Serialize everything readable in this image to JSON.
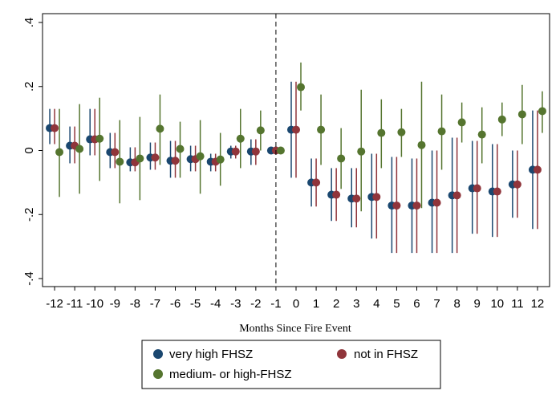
{
  "chart_data": {
    "type": "scatter",
    "title": "",
    "xlabel": "Months Since Fire Event",
    "ylabel": "",
    "x": [
      -12,
      -11,
      -10,
      -9,
      -8,
      -7,
      -6,
      -5,
      -4,
      -3,
      -2,
      -1,
      0,
      1,
      2,
      3,
      4,
      5,
      6,
      7,
      8,
      9,
      10,
      11,
      12
    ],
    "xtick_labels": [
      "-12",
      "-11",
      "-10",
      "-9",
      "-8",
      "-7",
      "-6",
      "-5",
      "-4",
      "-3",
      "-2",
      "-1",
      "0",
      "1",
      "2",
      "3",
      "4",
      "5",
      "6",
      "7",
      "8",
      "9",
      "10",
      "11",
      "12"
    ],
    "ylim": [
      -0.4,
      0.4
    ],
    "yticks": [
      -0.4,
      -0.2,
      0,
      0.2,
      0.4
    ],
    "ytick_labels": [
      "-.4",
      "-.2",
      "0",
      ".2",
      ".4"
    ],
    "reference_line_x": -1,
    "reference_line_style": "dashed",
    "grid": false,
    "legend_position": "bottom",
    "series": [
      {
        "name": "very high FHSZ",
        "color": "#1a476f",
        "values": [
          0.07,
          0.015,
          0.035,
          -0.005,
          -0.037,
          -0.022,
          -0.032,
          -0.027,
          -0.035,
          -0.003,
          -0.003,
          0.0,
          0.065,
          -0.1,
          -0.138,
          -0.15,
          -0.145,
          -0.172,
          -0.172,
          -0.163,
          -0.14,
          -0.118,
          -0.128,
          -0.106,
          -0.06
        ],
        "lower": [
          0.02,
          -0.04,
          -0.015,
          -0.055,
          -0.065,
          -0.06,
          -0.085,
          -0.065,
          -0.065,
          -0.025,
          -0.045,
          0.0,
          -0.085,
          -0.175,
          -0.22,
          -0.24,
          -0.275,
          -0.32,
          -0.32,
          -0.32,
          -0.32,
          -0.26,
          -0.27,
          -0.21,
          -0.245
        ],
        "upper": [
          0.13,
          0.075,
          0.13,
          0.055,
          0.01,
          0.025,
          0.03,
          0.015,
          -0.01,
          0.015,
          0.035,
          0.0,
          0.215,
          -0.025,
          -0.055,
          -0.055,
          -0.01,
          -0.02,
          -0.025,
          0.0,
          0.04,
          0.03,
          0.02,
          0.0,
          0.125
        ]
      },
      {
        "name": "not in FHSZ",
        "color": "#90353b",
        "values": [
          0.07,
          0.015,
          0.035,
          -0.005,
          -0.037,
          -0.022,
          -0.032,
          -0.027,
          -0.035,
          -0.003,
          -0.003,
          0.0,
          0.065,
          -0.1,
          -0.138,
          -0.15,
          -0.145,
          -0.172,
          -0.172,
          -0.163,
          -0.14,
          -0.118,
          -0.128,
          -0.106,
          -0.06
        ],
        "lower": [
          0.02,
          -0.04,
          -0.015,
          -0.055,
          -0.065,
          -0.06,
          -0.085,
          -0.065,
          -0.065,
          -0.025,
          -0.045,
          0.0,
          -0.085,
          -0.175,
          -0.22,
          -0.24,
          -0.275,
          -0.32,
          -0.32,
          -0.32,
          -0.32,
          -0.26,
          -0.27,
          -0.21,
          -0.245
        ],
        "upper": [
          0.13,
          0.075,
          0.13,
          0.055,
          0.01,
          0.025,
          0.03,
          0.015,
          -0.01,
          0.015,
          0.035,
          0.0,
          0.215,
          -0.025,
          -0.055,
          -0.055,
          -0.01,
          -0.02,
          -0.025,
          0.0,
          0.04,
          0.03,
          0.02,
          0.0,
          0.125
        ]
      },
      {
        "name": "medium- or high-FHSZ",
        "color": "#55752f",
        "values": [
          -0.005,
          0.005,
          0.037,
          -0.035,
          -0.025,
          0.068,
          0.005,
          -0.018,
          -0.028,
          0.037,
          0.063,
          0.0,
          0.198,
          0.065,
          -0.025,
          -0.003,
          0.055,
          0.057,
          0.017,
          0.06,
          0.088,
          0.05,
          0.097,
          0.113,
          0.123
        ],
        "lower": [
          -0.145,
          -0.135,
          -0.095,
          -0.165,
          -0.155,
          -0.045,
          -0.085,
          -0.135,
          -0.11,
          -0.055,
          0.0,
          0.0,
          0.125,
          -0.045,
          -0.12,
          -0.19,
          -0.055,
          -0.02,
          -0.18,
          -0.06,
          0.025,
          -0.04,
          0.045,
          0.02,
          0.055
        ],
        "upper": [
          0.13,
          0.145,
          0.165,
          0.095,
          0.105,
          0.175,
          0.09,
          0.095,
          0.055,
          0.13,
          0.125,
          0.0,
          0.275,
          0.175,
          0.07,
          0.19,
          0.16,
          0.13,
          0.215,
          0.175,
          0.15,
          0.135,
          0.15,
          0.205,
          0.185
        ]
      }
    ]
  }
}
